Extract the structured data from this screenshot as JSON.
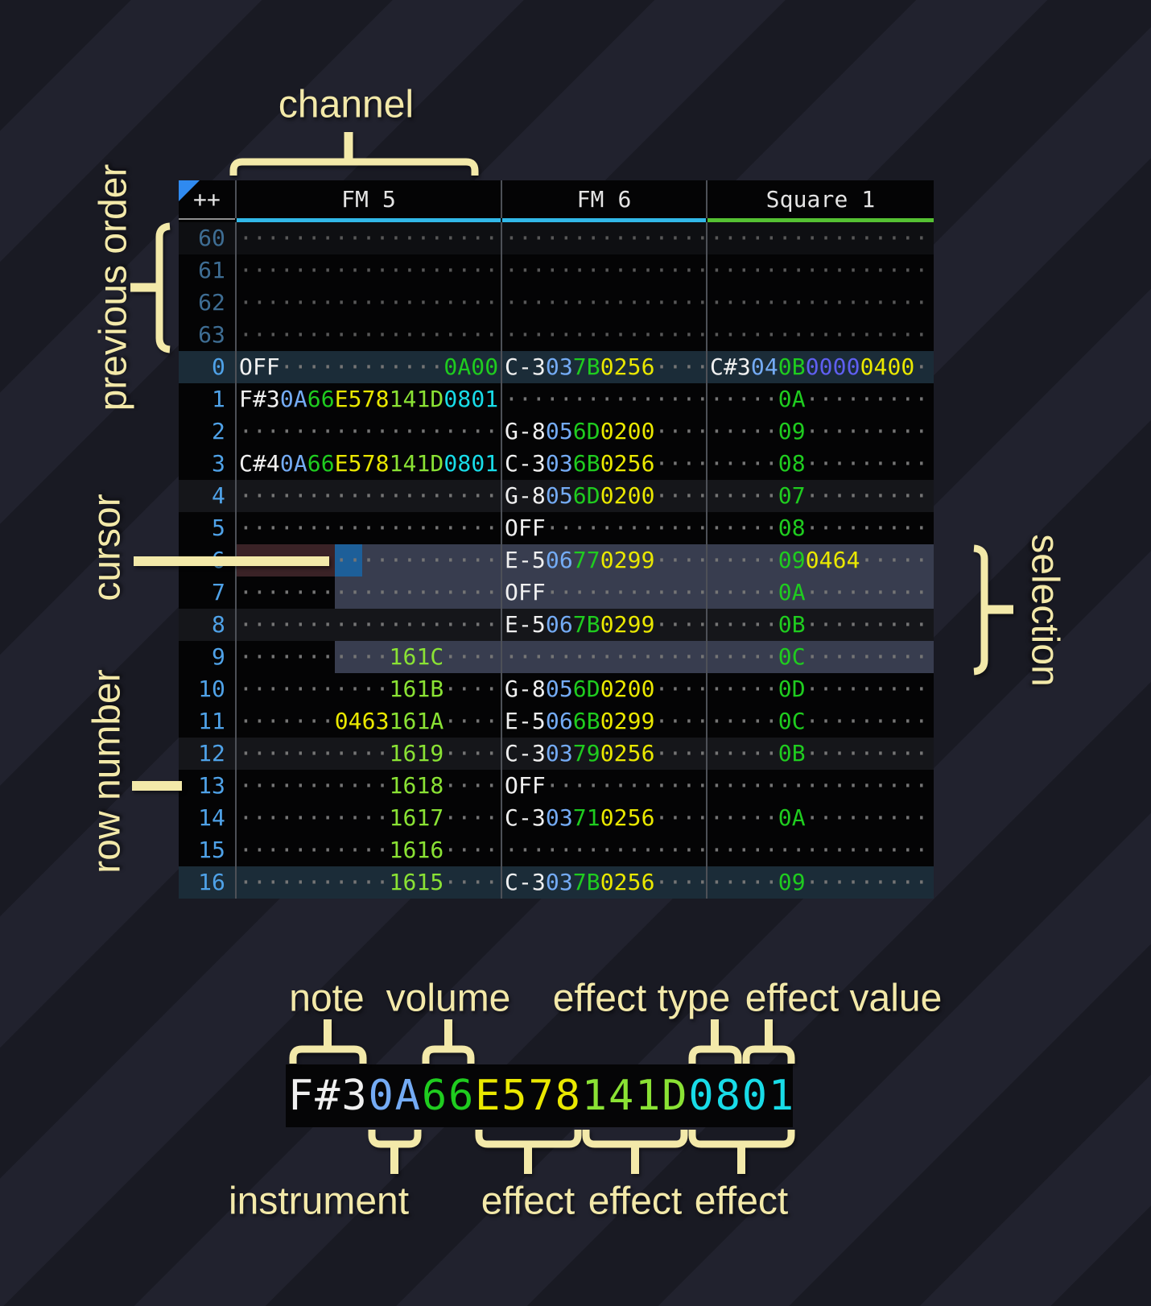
{
  "annotations": {
    "channel": "channel",
    "previous_order": "previous order",
    "cursor": "cursor",
    "row_number": "row number",
    "selection": "selection",
    "note": "note",
    "volume": "volume",
    "effect_type": "effect type",
    "effect_value": "effect value",
    "instrument": "instrument",
    "effect_a": "effect",
    "effect_b": "effect",
    "effect_c": "effect"
  },
  "colors": {
    "annotation": "#f3e9a9",
    "channel_bar_fm": "#32b8e8",
    "channel_bar_square": "#55c133",
    "cursor": "#1d5f99",
    "cursor_row_highlight": "#3a2226",
    "selection": "#3a3f52",
    "row_number": "#4fa2e8",
    "previous_row_number": "#3e6d93",
    "note_text": "#f0f0f0",
    "instrument_text": "#74abf4",
    "volume_text": "#1fcc1f",
    "effect_yellow": "#eae800",
    "effect_lime": "#8ae234",
    "effect_cyan": "#18dce8",
    "effect_indigo": "#5f5ff0",
    "effect_green": "#1fcc1f"
  },
  "tracker": {
    "corner": "++",
    "channels": [
      {
        "name": "FM 5"
      },
      {
        "name": "FM 6"
      },
      {
        "name": "Square 1"
      }
    ],
    "rows": [
      {
        "num": "60",
        "style": "prev4",
        "fm5": [
          {
            "d": 19
          }
        ],
        "fm6": [
          {
            "d": 15
          }
        ],
        "sq1": [
          {
            "d": 16
          }
        ]
      },
      {
        "num": "61",
        "style": "prev",
        "fm5": [
          {
            "d": 19
          }
        ],
        "fm6": [
          {
            "d": 15
          }
        ],
        "sq1": [
          {
            "d": 16
          }
        ]
      },
      {
        "num": "62",
        "style": "prev",
        "fm5": [
          {
            "d": 19
          }
        ],
        "fm6": [
          {
            "d": 15
          }
        ],
        "sq1": [
          {
            "d": 16
          }
        ]
      },
      {
        "num": "63",
        "style": "prev",
        "fm5": [
          {
            "d": 19
          }
        ],
        "fm6": [
          {
            "d": 15
          }
        ],
        "sq1": [
          {
            "d": 16
          }
        ]
      },
      {
        "num": "0",
        "style": "hl16",
        "fm5": [
          {
            "t": "OFF",
            "c": "n"
          },
          {
            "d": 12
          },
          {
            "t": "0A00",
            "c": "g"
          }
        ],
        "fm6": [
          {
            "t": "C-3",
            "c": "n"
          },
          {
            "t": "03",
            "c": "i"
          },
          {
            "t": "7B",
            "c": "v"
          },
          {
            "t": "0256",
            "c": "y"
          },
          {
            "d": 4
          }
        ],
        "sq1": [
          {
            "t": "C#3",
            "c": "n"
          },
          {
            "t": "04",
            "c": "i"
          },
          {
            "t": "0B",
            "c": "v"
          },
          {
            "t": "0000",
            "c": "p"
          },
          {
            "t": "0400",
            "c": "y"
          },
          {
            "d": 1
          }
        ]
      },
      {
        "num": "1",
        "style": "",
        "fm5": [
          {
            "t": "F#3",
            "c": "n"
          },
          {
            "t": "0A",
            "c": "i"
          },
          {
            "t": "66",
            "c": "v"
          },
          {
            "t": "E578",
            "c": "y"
          },
          {
            "t": "141D",
            "c": "l"
          },
          {
            "t": "0801",
            "c": "c"
          }
        ],
        "fm6": [
          {
            "d": 15
          }
        ],
        "sq1": [
          {
            "d": 5
          },
          {
            "t": "0A",
            "c": "v"
          },
          {
            "d": 9
          }
        ]
      },
      {
        "num": "2",
        "style": "",
        "fm5": [
          {
            "d": 19
          }
        ],
        "fm6": [
          {
            "t": "G-8",
            "c": "n"
          },
          {
            "t": "05",
            "c": "i"
          },
          {
            "t": "6D",
            "c": "v"
          },
          {
            "t": "0200",
            "c": "y"
          },
          {
            "d": 4
          }
        ],
        "sq1": [
          {
            "d": 5
          },
          {
            "t": "09",
            "c": "v"
          },
          {
            "d": 9
          }
        ]
      },
      {
        "num": "3",
        "style": "",
        "fm5": [
          {
            "t": "C#4",
            "c": "n"
          },
          {
            "t": "0A",
            "c": "i"
          },
          {
            "t": "66",
            "c": "v"
          },
          {
            "t": "E578",
            "c": "y"
          },
          {
            "t": "141D",
            "c": "l"
          },
          {
            "t": "0801",
            "c": "c"
          }
        ],
        "fm6": [
          {
            "t": "C-3",
            "c": "n"
          },
          {
            "t": "03",
            "c": "i"
          },
          {
            "t": "6B",
            "c": "v"
          },
          {
            "t": "0256",
            "c": "y"
          },
          {
            "d": 4
          }
        ],
        "sq1": [
          {
            "d": 5
          },
          {
            "t": "08",
            "c": "v"
          },
          {
            "d": 9
          }
        ]
      },
      {
        "num": "4",
        "style": "hl4",
        "fm5": [
          {
            "d": 19
          }
        ],
        "fm6": [
          {
            "t": "G-8",
            "c": "n"
          },
          {
            "t": "05",
            "c": "i"
          },
          {
            "t": "6D",
            "c": "v"
          },
          {
            "t": "0200",
            "c": "y"
          },
          {
            "d": 4
          }
        ],
        "sq1": [
          {
            "d": 5
          },
          {
            "t": "07",
            "c": "v"
          },
          {
            "d": 9
          }
        ]
      },
      {
        "num": "5",
        "style": "",
        "fm5": [
          {
            "d": 19
          }
        ],
        "fm6": [
          {
            "t": "OFF",
            "c": "n"
          },
          {
            "d": 12
          }
        ],
        "sq1": [
          {
            "d": 5
          },
          {
            "t": "08",
            "c": "v"
          },
          {
            "d": 9
          }
        ]
      },
      {
        "num": "6",
        "style": "",
        "fm5": [
          {
            "d": 19
          }
        ],
        "fm6": [
          {
            "t": "E-5",
            "c": "n"
          },
          {
            "t": "06",
            "c": "i"
          },
          {
            "t": "77",
            "c": "v"
          },
          {
            "t": "0299",
            "c": "y"
          },
          {
            "d": 4
          }
        ],
        "sq1": [
          {
            "d": 5
          },
          {
            "t": "09",
            "c": "v"
          },
          {
            "t": "0464",
            "c": "y"
          },
          {
            "d": 5
          }
        ]
      },
      {
        "num": "7",
        "style": "",
        "fm5": [
          {
            "d": 19
          }
        ],
        "fm6": [
          {
            "t": "OFF",
            "c": "n"
          },
          {
            "d": 12
          }
        ],
        "sq1": [
          {
            "d": 5
          },
          {
            "t": "0A",
            "c": "v"
          },
          {
            "d": 9
          }
        ]
      },
      {
        "num": "8",
        "style": "hl4",
        "fm5": [
          {
            "d": 19
          }
        ],
        "fm6": [
          {
            "t": "E-5",
            "c": "n"
          },
          {
            "t": "06",
            "c": "i"
          },
          {
            "t": "7B",
            "c": "v"
          },
          {
            "t": "0299",
            "c": "y"
          },
          {
            "d": 4
          }
        ],
        "sq1": [
          {
            "d": 5
          },
          {
            "t": "0B",
            "c": "v"
          },
          {
            "d": 9
          }
        ]
      },
      {
        "num": "9",
        "style": "",
        "fm5": [
          {
            "d": 11
          },
          {
            "t": "161C",
            "c": "l"
          },
          {
            "d": 4
          }
        ],
        "fm6": [
          {
            "d": 15
          }
        ],
        "sq1": [
          {
            "d": 5
          },
          {
            "t": "0C",
            "c": "v"
          },
          {
            "d": 9
          }
        ]
      },
      {
        "num": "10",
        "style": "",
        "fm5": [
          {
            "d": 11
          },
          {
            "t": "161B",
            "c": "l"
          },
          {
            "d": 4
          }
        ],
        "fm6": [
          {
            "t": "G-8",
            "c": "n"
          },
          {
            "t": "05",
            "c": "i"
          },
          {
            "t": "6D",
            "c": "v"
          },
          {
            "t": "0200",
            "c": "y"
          },
          {
            "d": 4
          }
        ],
        "sq1": [
          {
            "d": 5
          },
          {
            "t": "0D",
            "c": "v"
          },
          {
            "d": 9
          }
        ]
      },
      {
        "num": "11",
        "style": "",
        "fm5": [
          {
            "d": 7
          },
          {
            "t": "0463",
            "c": "y"
          },
          {
            "t": "161A",
            "c": "l"
          },
          {
            "d": 4
          }
        ],
        "fm6": [
          {
            "t": "E-5",
            "c": "n"
          },
          {
            "t": "06",
            "c": "i"
          },
          {
            "t": "6B",
            "c": "v"
          },
          {
            "t": "0299",
            "c": "y"
          },
          {
            "d": 4
          }
        ],
        "sq1": [
          {
            "d": 5
          },
          {
            "t": "0C",
            "c": "v"
          },
          {
            "d": 9
          }
        ]
      },
      {
        "num": "12",
        "style": "hl4",
        "fm5": [
          {
            "d": 11
          },
          {
            "t": "1619",
            "c": "l"
          },
          {
            "d": 4
          }
        ],
        "fm6": [
          {
            "t": "C-3",
            "c": "n"
          },
          {
            "t": "03",
            "c": "i"
          },
          {
            "t": "79",
            "c": "v"
          },
          {
            "t": "0256",
            "c": "y"
          },
          {
            "d": 4
          }
        ],
        "sq1": [
          {
            "d": 5
          },
          {
            "t": "0B",
            "c": "v"
          },
          {
            "d": 9
          }
        ]
      },
      {
        "num": "13",
        "style": "",
        "fm5": [
          {
            "d": 11
          },
          {
            "t": "1618",
            "c": "l"
          },
          {
            "d": 4
          }
        ],
        "fm6": [
          {
            "t": "OFF",
            "c": "n"
          },
          {
            "d": 12
          }
        ],
        "sq1": [
          {
            "d": 16
          }
        ]
      },
      {
        "num": "14",
        "style": "",
        "fm5": [
          {
            "d": 11
          },
          {
            "t": "1617",
            "c": "l"
          },
          {
            "d": 4
          }
        ],
        "fm6": [
          {
            "t": "C-3",
            "c": "n"
          },
          {
            "t": "03",
            "c": "i"
          },
          {
            "t": "71",
            "c": "v"
          },
          {
            "t": "0256",
            "c": "y"
          },
          {
            "d": 4
          }
        ],
        "sq1": [
          {
            "d": 5
          },
          {
            "t": "0A",
            "c": "v"
          },
          {
            "d": 9
          }
        ]
      },
      {
        "num": "15",
        "style": "",
        "fm5": [
          {
            "d": 11
          },
          {
            "t": "1616",
            "c": "l"
          },
          {
            "d": 4
          }
        ],
        "fm6": [
          {
            "d": 15
          }
        ],
        "sq1": [
          {
            "d": 16
          }
        ]
      },
      {
        "num": "16",
        "style": "hl16",
        "fm5": [
          {
            "d": 11
          },
          {
            "t": "1615",
            "c": "l"
          },
          {
            "d": 4
          }
        ],
        "fm6": [
          {
            "t": "C-3",
            "c": "n"
          },
          {
            "t": "03",
            "c": "i"
          },
          {
            "t": "7B",
            "c": "v"
          },
          {
            "t": "0256",
            "c": "y"
          },
          {
            "d": 4
          }
        ],
        "sq1": [
          {
            "d": 5
          },
          {
            "t": "09",
            "c": "v"
          },
          {
            "d": 9
          }
        ]
      }
    ]
  },
  "legend": {
    "segments": [
      {
        "t": "F#3",
        "c": "n"
      },
      {
        "t": "0A",
        "c": "i"
      },
      {
        "t": "66",
        "c": "v"
      },
      {
        "t": "E578",
        "c": "y"
      },
      {
        "t": "141D",
        "c": "l"
      },
      {
        "t": "0801",
        "c": "c"
      }
    ]
  }
}
